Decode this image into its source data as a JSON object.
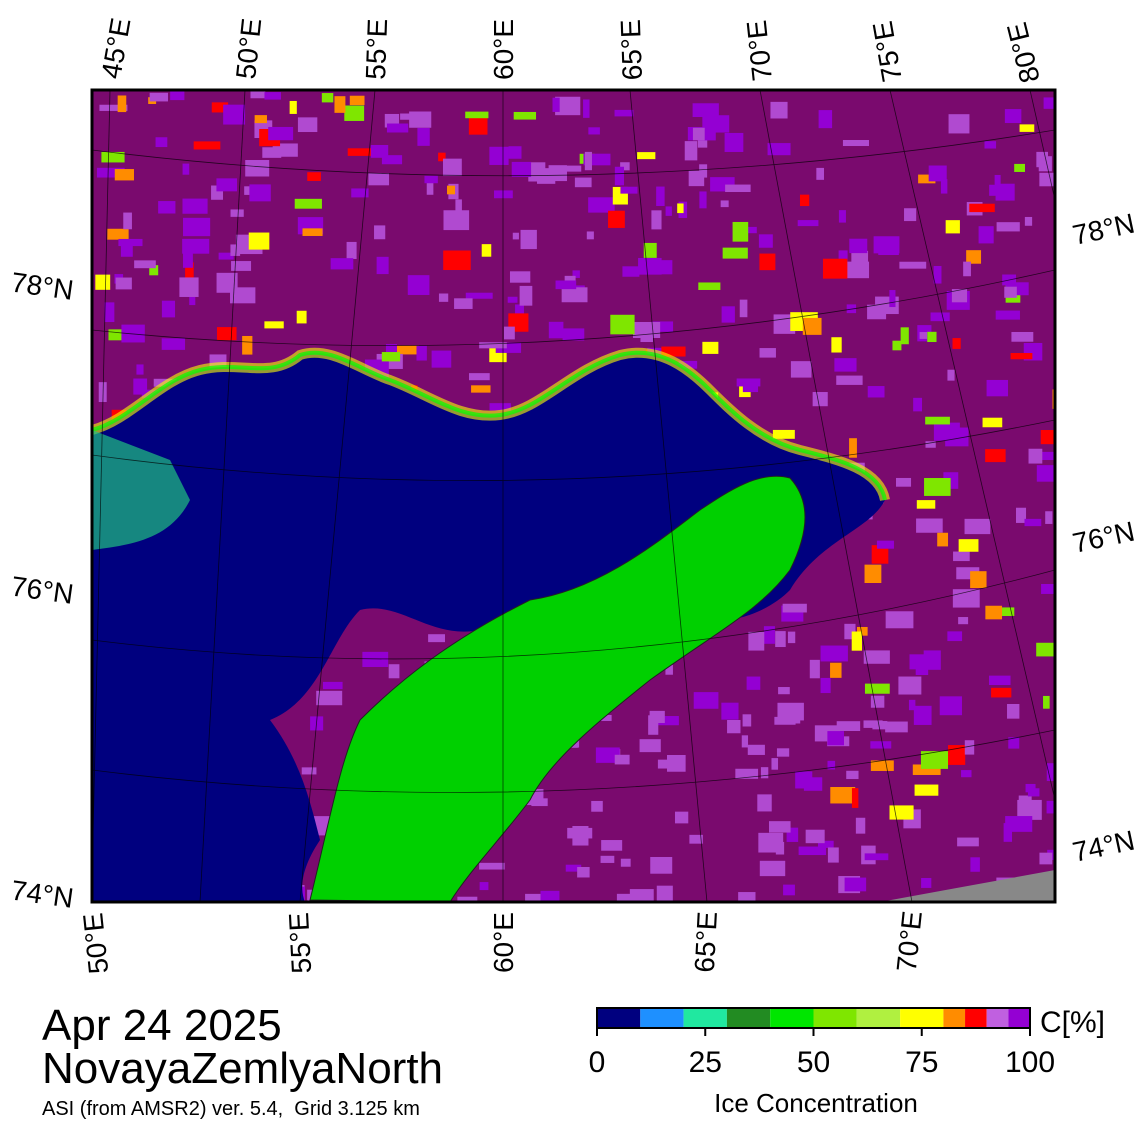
{
  "map": {
    "lon_labels_top": [
      "45°E",
      "50°E",
      "55°E",
      "60°E",
      "65°E",
      "70°E",
      "75°E",
      "80°E"
    ],
    "lon_labels_bottom": [
      "50°E",
      "55°E",
      "60°E",
      "65°E",
      "70°E"
    ],
    "lat_labels_left": [
      "78°N",
      "76°N",
      "74°N"
    ],
    "lat_labels_right": [
      "78°N",
      "76°N",
      "74°N"
    ]
  },
  "title": {
    "date": "Apr 24 2025",
    "region": "NovayaZemlyaNorth",
    "subtitle": "ASI (from AMSR2) ver. 5.4,  Grid 3.125 km"
  },
  "colorbar": {
    "label": "Ice Concentration",
    "unit": "C[%]",
    "lim": [
      0,
      100
    ],
    "ticks": [
      0,
      25,
      50,
      75,
      100
    ],
    "bins": [
      0,
      10,
      20,
      30,
      40,
      50,
      60,
      70,
      80,
      85,
      90,
      95,
      100
    ],
    "colors": [
      "#00007f",
      "#1e90ff",
      "#20e8a0",
      "#228b22",
      "#00e600",
      "#7fe600",
      "#b0f040",
      "#ffff00",
      "#ff8c00",
      "#ff0000",
      "#c060e0",
      "#9400d3"
    ]
  }
}
